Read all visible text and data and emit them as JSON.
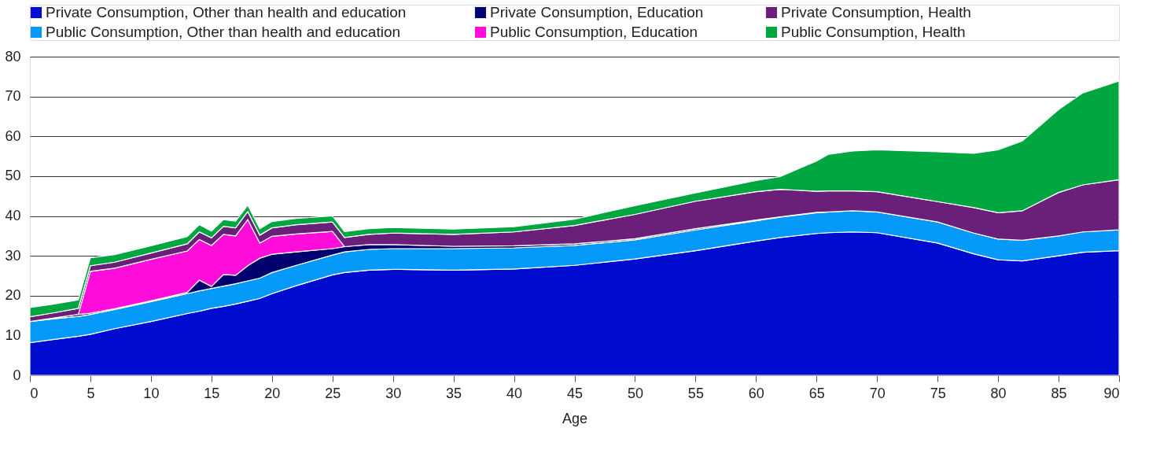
{
  "chart_data": {
    "type": "area",
    "stacked": true,
    "xlabel": "Age",
    "legend": "top",
    "grid": "y",
    "xlim": [
      0,
      90
    ],
    "xticks": [
      0,
      5,
      10,
      15,
      20,
      25,
      30,
      35,
      40,
      45,
      50,
      55,
      60,
      65,
      70,
      75,
      80,
      85,
      90
    ],
    "ylim": [
      0,
      80
    ],
    "yticks": [
      0,
      10,
      20,
      30,
      40,
      50,
      60,
      70,
      80
    ],
    "x": [
      0,
      2,
      4,
      5,
      7,
      10,
      13,
      14,
      15,
      16,
      17,
      18,
      19,
      20,
      22,
      25,
      26,
      28,
      30,
      35,
      40,
      45,
      50,
      55,
      60,
      62,
      65,
      66,
      68,
      70,
      75,
      78,
      80,
      82,
      85,
      87,
      90
    ],
    "series": [
      {
        "name": "Private Consumption, Other than health and education",
        "color": "#000ccf",
        "values": [
          8.2,
          9,
          9.8,
          10.3,
          11.7,
          13.5,
          15.5,
          16.1,
          16.8,
          17.3,
          17.9,
          18.6,
          19.3,
          20.5,
          22.5,
          25.2,
          25.8,
          26.4,
          26.6,
          26.4,
          26.7,
          27.6,
          29.2,
          31.3,
          33.7,
          34.6,
          35.6,
          35.8,
          36,
          35.8,
          33.2,
          30.5,
          29,
          28.7,
          30,
          30.9,
          31.3
        ]
      },
      {
        "name": "Public Consumption, Other than health and education",
        "color": "#0599fa",
        "values": [
          5.3,
          5.2,
          5.0,
          5.0,
          4.8,
          5.0,
          5.0,
          5.1,
          5.0,
          5.1,
          5.1,
          5.1,
          5.1,
          5.3,
          5.1,
          5.0,
          5.2,
          5.2,
          5.2,
          5.4,
          5.3,
          5.0,
          4.8,
          5.2,
          5.1,
          5.1,
          5.2,
          5.2,
          5.3,
          5.2,
          5.3,
          5.2,
          5.2,
          5.2,
          5.0,
          5.1,
          5.2
        ]
      },
      {
        "name": "Private Consumption, Education",
        "color": "#00006e",
        "values": [
          0,
          0.2,
          0.5,
          0.3,
          0.2,
          0.2,
          0.3,
          2.7,
          0.5,
          2.9,
          2.1,
          3.8,
          5,
          4.6,
          3.4,
          1.6,
          1.3,
          1.2,
          1.0,
          0.6,
          0.5,
          0.4,
          0.3,
          0.3,
          0.2,
          0.1,
          0.1,
          0,
          null,
          null,
          null,
          null,
          null,
          null,
          null,
          null,
          null
        ]
      },
      {
        "name": "Public Consumption, Education",
        "color": "#ff0ddb",
        "values": [
          null,
          null,
          0,
          10.5,
          10.2,
          10.4,
          10.4,
          10.2,
          10.3,
          10.1,
          9.9,
          11.6,
          3.8,
          4.5,
          4.5,
          4.3,
          0,
          null,
          null,
          null,
          null,
          null,
          null,
          null,
          null,
          null,
          null,
          null,
          null,
          null,
          null,
          null,
          null,
          null,
          null,
          null,
          null
        ]
      },
      {
        "name": "Private Consumption, Health",
        "color": "#6a1f78",
        "values": [
          1.2,
          1.3,
          1.5,
          1.4,
          1.5,
          1.6,
          1.8,
          1.9,
          1.9,
          2,
          2,
          2,
          2,
          2.1,
          2.3,
          2.4,
          2.3,
          2.6,
          2.9,
          3.0,
          3.5,
          4.6,
          6.1,
          6.9,
          7.1,
          6.9,
          5.3,
          5.3,
          5.0,
          5.1,
          5.1,
          6.4,
          6.6,
          7.4,
          10.9,
          11.8,
          12.6
        ]
      },
      {
        "name": "Public Consumption, Health",
        "color": "#00a640",
        "values": [
          2.3,
          2.2,
          2.1,
          2.0,
          1.9,
          1.8,
          1.8,
          1.8,
          1.7,
          1.7,
          1.7,
          1.6,
          1.6,
          1.6,
          1.6,
          1.5,
          1.5,
          1.4,
          1.4,
          1.3,
          1.3,
          1.6,
          2.2,
          2.1,
          2.8,
          3.2,
          7.6,
          9.2,
          10,
          10.5,
          12.5,
          13.6,
          15.8,
          17.5,
          20.8,
          23.1,
          24.8
        ]
      }
    ]
  }
}
